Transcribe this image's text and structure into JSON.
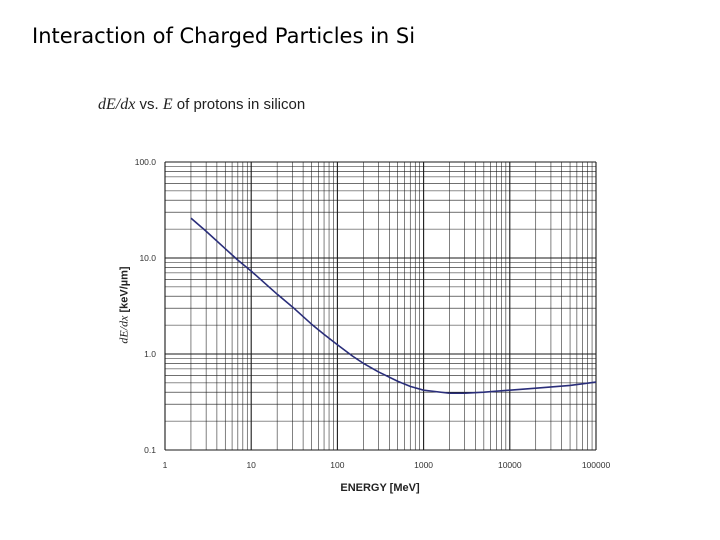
{
  "slide": {
    "title": "Interaction of Charged Particles in Si"
  },
  "chart_data": {
    "type": "line",
    "title_italic": "dE/dx",
    "title_rest": " vs. ",
    "title_italic2": "E",
    "title_tail": " of protons in silicon",
    "xlabel": "ENERGY [MeV]",
    "ylabel_italic": "dE/dx",
    "ylabel_rest": " [keV/µm]",
    "xscale": "log",
    "yscale": "log",
    "xlim": [
      1,
      100000
    ],
    "ylim": [
      0.1,
      100.0
    ],
    "xticks": [
      "1",
      "10",
      "100",
      "1000",
      "10000",
      "100000"
    ],
    "yticks": [
      "0.1",
      "1.0",
      "10.0",
      "100.0"
    ],
    "grid": true,
    "line_color": "#2a2e7a",
    "series": [
      {
        "name": "protons in silicon",
        "x": [
          2,
          3,
          5,
          7,
          10,
          20,
          30,
          50,
          70,
          100,
          150,
          200,
          300,
          500,
          700,
          1000,
          2000,
          3000,
          5000,
          7000,
          10000,
          20000,
          50000,
          100000
        ],
        "y": [
          26,
          19,
          12.5,
          9.5,
          7.3,
          4.2,
          3.1,
          2.05,
          1.6,
          1.25,
          0.95,
          0.8,
          0.65,
          0.52,
          0.46,
          0.42,
          0.39,
          0.39,
          0.4,
          0.41,
          0.42,
          0.44,
          0.47,
          0.51
        ]
      }
    ]
  }
}
